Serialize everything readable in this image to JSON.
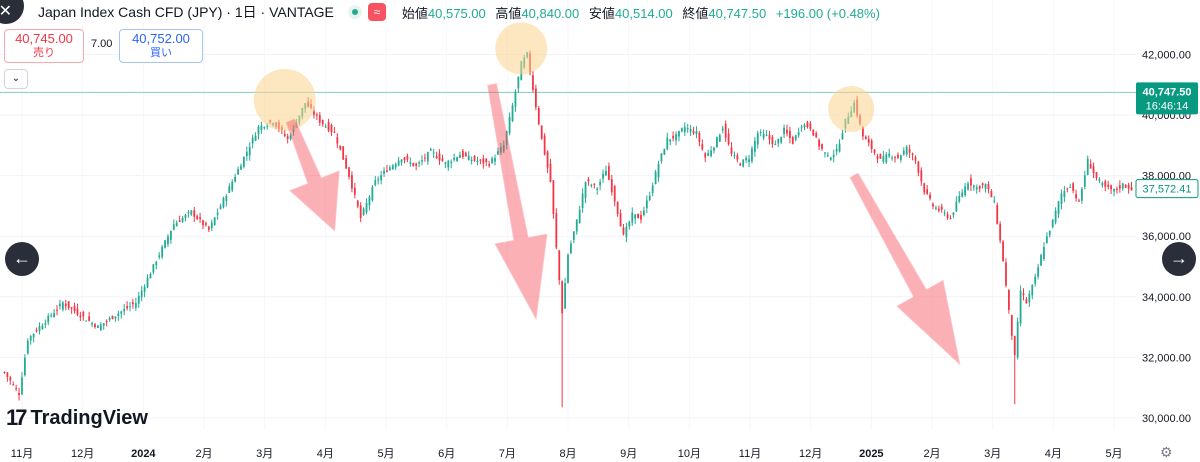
{
  "header": {
    "title": "Japan Index Cash CFD (JPY) · 1日 · VANTAGE",
    "badge_symbol": "≈",
    "ohlc": [
      {
        "label": "始値",
        "value": "40,575.00"
      },
      {
        "label": "高値",
        "value": "40,840.00"
      },
      {
        "label": "安値",
        "value": "40,514.00"
      },
      {
        "label": "終値",
        "value": "40,747.50"
      }
    ],
    "change": "+196.00 (+0.48%)"
  },
  "trade": {
    "sell_price": "40,745.00",
    "sell_label": "売り",
    "spread": "7.00",
    "buy_price": "40,752.00",
    "buy_label": "買い",
    "collapse_icon": "⌄"
  },
  "nav": {
    "left_arrow": "←",
    "right_arrow": "→",
    "top_close": "✕"
  },
  "logo": {
    "mark": "17",
    "word": "TradingView"
  },
  "settings_icon": "⚙",
  "colors": {
    "up": "#22ab94",
    "down": "#f23645",
    "accent": "#089981",
    "arrow": "#f7525f"
  },
  "chart_data": {
    "type": "candlestick",
    "symbol": "Japan Index Cash CFD (JPY)",
    "interval": "1日",
    "ylim": [
      29600,
      43800
    ],
    "y_ticks": [
      30000,
      32000,
      34000,
      36000,
      38000,
      40000,
      42000
    ],
    "y_tick_labels": [
      "30,000.00",
      "32,000.00",
      "34,000.00",
      "36,000.00",
      "38,000.00",
      "40,000.00",
      "42,000.00"
    ],
    "x_labels": [
      "11月",
      "12月",
      "2024",
      "2月",
      "3月",
      "4月",
      "5月",
      "6月",
      "7月",
      "8月",
      "9月",
      "10月",
      "11月",
      "12月",
      "2025",
      "2月",
      "3月",
      "4月",
      "5月"
    ],
    "price_markers": [
      {
        "value": 40747.5,
        "label": "40,747.50",
        "sublabel": "16:46:14",
        "style": "filled"
      },
      {
        "value": 37572.41,
        "label": "37,572.41",
        "style": "outline"
      }
    ],
    "current_price_line": 40747.5,
    "anchors": [
      [
        0,
        31500
      ],
      [
        5,
        30800
      ],
      [
        8,
        32600
      ],
      [
        14,
        33200
      ],
      [
        20,
        33800
      ],
      [
        26,
        33400
      ],
      [
        32,
        33000
      ],
      [
        38,
        33400
      ],
      [
        45,
        33800
      ],
      [
        52,
        35200
      ],
      [
        58,
        36400
      ],
      [
        64,
        36800
      ],
      [
        70,
        36200
      ],
      [
        76,
        37400
      ],
      [
        82,
        38600
      ],
      [
        87,
        39600
      ],
      [
        92,
        39800
      ],
      [
        97,
        39200
      ],
      [
        103,
        40400
      ],
      [
        108,
        39800
      ],
      [
        113,
        39400
      ],
      [
        118,
        38000
      ],
      [
        122,
        36600
      ],
      [
        127,
        37800
      ],
      [
        131,
        38200
      ],
      [
        136,
        38600
      ],
      [
        141,
        38300
      ],
      [
        146,
        38800
      ],
      [
        151,
        38400
      ],
      [
        156,
        38700
      ],
      [
        161,
        38500
      ],
      [
        166,
        38400
      ],
      [
        171,
        39000
      ],
      [
        174,
        40300
      ],
      [
        177,
        41700
      ],
      [
        179,
        42000
      ],
      [
        182,
        40300
      ],
      [
        184,
        39200
      ],
      [
        187,
        37800
      ],
      [
        189,
        35600
      ],
      [
        191,
        33500
      ],
      [
        193,
        35400
      ],
      [
        196,
        36500
      ],
      [
        199,
        37800
      ],
      [
        203,
        37600
      ],
      [
        206,
        38200
      ],
      [
        209,
        37200
      ],
      [
        212,
        36000
      ],
      [
        215,
        36700
      ],
      [
        218,
        36600
      ],
      [
        221,
        37400
      ],
      [
        224,
        38400
      ],
      [
        227,
        39200
      ],
      [
        230,
        39300
      ],
      [
        233,
        39600
      ],
      [
        237,
        39400
      ],
      [
        240,
        38600
      ],
      [
        243,
        39000
      ],
      [
        246,
        39600
      ],
      [
        249,
        38700
      ],
      [
        252,
        38400
      ],
      [
        255,
        38600
      ],
      [
        258,
        39400
      ],
      [
        261,
        39300
      ],
      [
        264,
        39000
      ],
      [
        267,
        39500
      ],
      [
        270,
        39100
      ],
      [
        273,
        39700
      ],
      [
        276,
        39600
      ],
      [
        279,
        39000
      ],
      [
        282,
        38600
      ],
      [
        285,
        38800
      ],
      [
        288,
        39800
      ],
      [
        291,
        40400
      ],
      [
        294,
        39300
      ],
      [
        297,
        38900
      ],
      [
        300,
        38500
      ],
      [
        303,
        38700
      ],
      [
        306,
        38600
      ],
      [
        309,
        38900
      ],
      [
        312,
        38500
      ],
      [
        315,
        37500
      ],
      [
        318,
        37000
      ],
      [
        321,
        36800
      ],
      [
        324,
        36600
      ],
      [
        327,
        37300
      ],
      [
        330,
        37800
      ],
      [
        333,
        37600
      ],
      [
        336,
        37700
      ],
      [
        339,
        37100
      ],
      [
        342,
        35200
      ],
      [
        344,
        33500
      ],
      [
        346,
        32000
      ],
      [
        348,
        34200
      ],
      [
        350,
        33800
      ],
      [
        353,
        34600
      ],
      [
        356,
        35700
      ],
      [
        359,
        36500
      ],
      [
        362,
        37400
      ],
      [
        365,
        37700
      ],
      [
        368,
        37100
      ],
      [
        371,
        38500
      ],
      [
        374,
        37900
      ],
      [
        377,
        37600
      ],
      [
        380,
        37500
      ],
      [
        383,
        37700
      ],
      [
        386,
        37572
      ]
    ],
    "annotations": [
      {
        "type": "highlight-circle",
        "x": 96,
        "price": 40500
      },
      {
        "type": "highlight-circle",
        "x": 177,
        "price": 42200
      },
      {
        "type": "highlight-circle",
        "x": 290,
        "price": 40200
      },
      {
        "type": "arrow-down",
        "from": [
          98,
          39800
        ],
        "to": [
          113,
          36200
        ]
      },
      {
        "type": "arrow-down",
        "from": [
          167,
          41000
        ],
        "to": [
          182,
          33300
        ]
      },
      {
        "type": "arrow-down",
        "from": [
          291,
          38000
        ],
        "to": [
          327,
          31800
        ]
      }
    ]
  }
}
